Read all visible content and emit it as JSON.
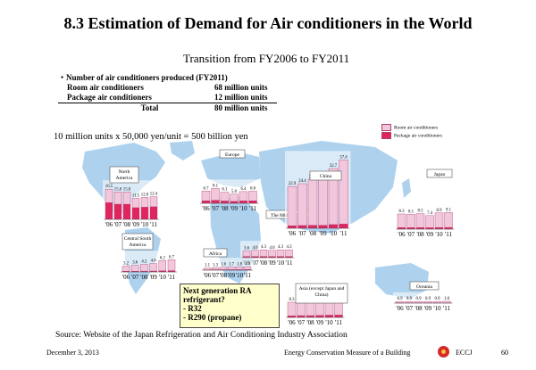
{
  "page": {
    "title": "8.3  Estimation of Demand for Air conditioners in the World",
    "subtitle": "Transition from FY2006 to FY2011",
    "table_header": "・Number of air conditioners produced (FY2011)",
    "table_rows": [
      {
        "label": "Room air conditioners",
        "value": "68 million units"
      },
      {
        "label": "Package air conditioners",
        "value": "12 million units"
      },
      {
        "label": "Total",
        "value": "80 million units"
      }
    ],
    "calculation": "10 million units x 50,000 yen/unit = 500 billion yen",
    "note_lines": [
      "Next generation RA",
      "refrigerant?",
      "- R32",
      "- R290 (propane)"
    ],
    "source": "Source: Website of the Japan Refrigeration and Air Conditioning Industry Association",
    "footer_date": "December 3, 2013",
    "footer_title": "Energy Conservation Measure of a Building",
    "footer_org": "ECCJ",
    "footer_page": "60"
  },
  "colors": {
    "room": "#f2c7dc",
    "package": "#e0245e",
    "bar_outline": "#b04070",
    "map": "#aed2ee",
    "map_dark": "#5b86b8"
  },
  "chart_data": {
    "type": "bar",
    "legend": {
      "placement": "right of China chart",
      "entries": [
        "Room air conditioners",
        "Package air conditioners"
      ]
    },
    "categories": [
      "'06",
      "'07",
      "'08",
      "'09",
      "'10",
      "'11"
    ],
    "regions": [
      {
        "name": "North America",
        "totals": [
          16.5,
          15.0,
          15.0,
          11.5,
          12.0,
          12.4
        ],
        "labels": [
          "16.5",
          "15.0",
          "15.0",
          "11.5",
          "12.0",
          "12.4"
        ],
        "package_share": 0.55
      },
      {
        "name": "Central South America",
        "totals": [
          3.2,
          3.6,
          4.2,
          4.6,
          6.2,
          6.7
        ],
        "labels": [
          "3.2",
          "3.6",
          "4.2",
          "4.6",
          "6.2",
          "6.7"
        ],
        "package_share": 0.1
      },
      {
        "name": "Europe",
        "totals": [
          6.7,
          8.1,
          6.1,
          5.0,
          6.4,
          6.6
        ],
        "labels": [
          "6.7",
          "8.1",
          "6.1",
          "5.0",
          "6.4",
          "6.6"
        ],
        "package_share": 0.2
      },
      {
        "name": "The Middle East",
        "totals": [
          3.6,
          4.0,
          4.3,
          4.0,
          4.3,
          4.3
        ],
        "labels": [
          "3.6",
          "4.0",
          "4.3",
          "4.0",
          "4.3",
          "4.3"
        ],
        "package_share": 0.15
      },
      {
        "name": "Africa",
        "totals": [
          1.1,
          1.3,
          1.6,
          1.7,
          1.8,
          1.9
        ],
        "labels": [
          "1.1",
          "1.3",
          "1.6",
          "1.7",
          "1.8",
          "1.9"
        ],
        "package_share": 0.15
      },
      {
        "name": "China",
        "totals": [
          22.9,
          24.4,
          26.7,
          26.8,
          32.7,
          37.4
        ],
        "labels": [
          "22.9",
          "24.4",
          "26.7",
          "26.8",
          "32.7",
          "37.4"
        ],
        "package_share": 0.06
      },
      {
        "name": "Japan",
        "totals": [
          8.3,
          8.1,
          8.5,
          7.4,
          8.9,
          9.1
        ],
        "labels": [
          "8.3",
          "8.1",
          "8.5",
          "7.4",
          "8.9",
          "9.1"
        ],
        "package_share": 0.1
      },
      {
        "name": "Asia (except Japan and China)",
        "totals": [
          8.3,
          9.3,
          9.4,
          10.3,
          12.0,
          12.3
        ],
        "labels": [
          "8.3",
          "9.3",
          "9.4",
          "10.3",
          "12.0",
          "12.3"
        ],
        "package_share": 0.1
      },
      {
        "name": "Oceania",
        "totals": [
          0.9,
          0.9,
          0.9,
          0.9,
          0.9,
          1.0
        ],
        "labels": [
          "0.9",
          "0.9",
          "0.9",
          "0.9",
          "0.9",
          "1.0"
        ],
        "package_share": 0.15
      }
    ]
  }
}
